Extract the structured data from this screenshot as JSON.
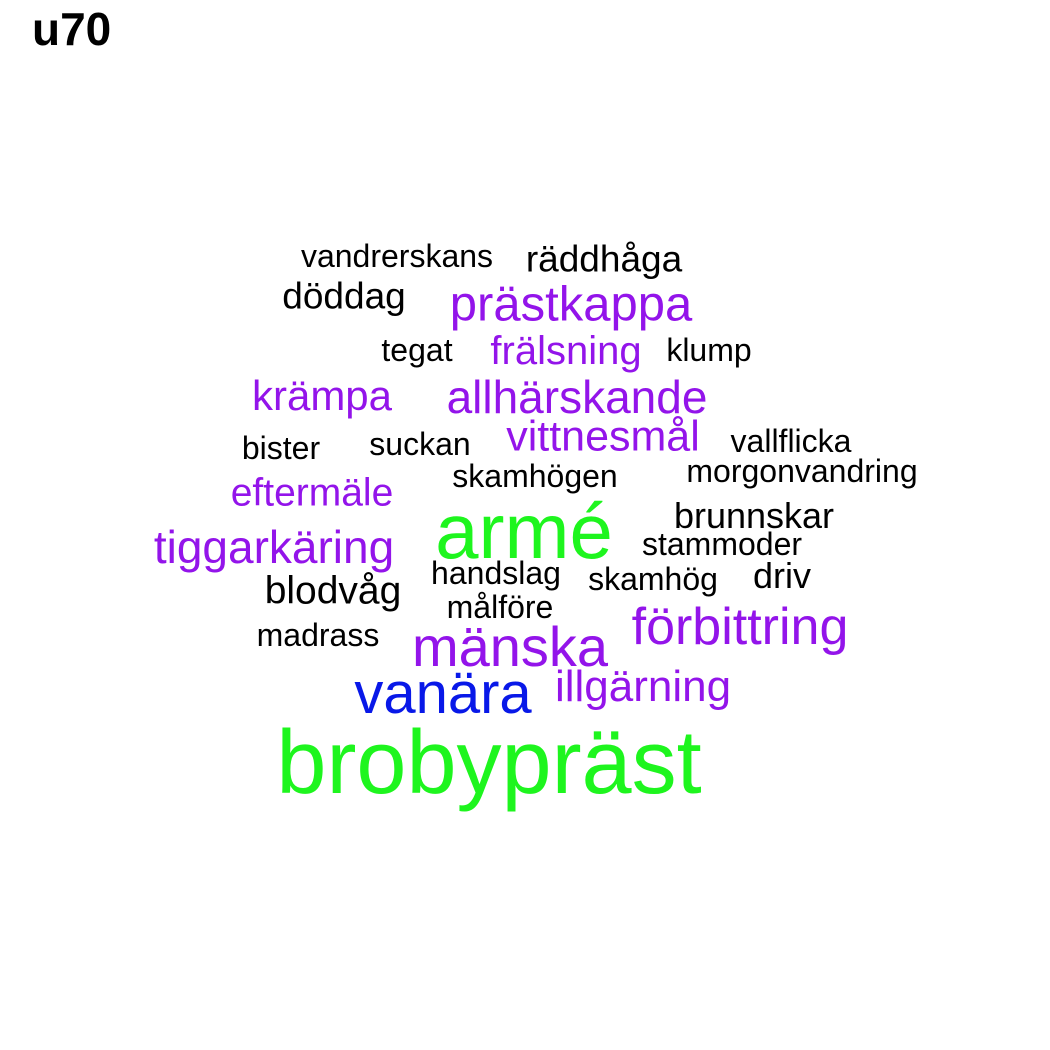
{
  "title": "u70",
  "colors": {
    "black": "#000000",
    "purple": "#9314ea",
    "green": "#1ef51e",
    "blue": "#0818e8"
  },
  "words": [
    {
      "text": "vandrerskans",
      "color": "black"
    },
    {
      "text": "räddhåga",
      "color": "black"
    },
    {
      "text": "döddag",
      "color": "black"
    },
    {
      "text": "prästkappa",
      "color": "purple"
    },
    {
      "text": "tegat",
      "color": "black"
    },
    {
      "text": "frälsning",
      "color": "purple"
    },
    {
      "text": "klump",
      "color": "black"
    },
    {
      "text": "krämpa",
      "color": "purple"
    },
    {
      "text": "allhärskande",
      "color": "purple"
    },
    {
      "text": "bister",
      "color": "black"
    },
    {
      "text": "suckan",
      "color": "black"
    },
    {
      "text": "vittnesmål",
      "color": "purple"
    },
    {
      "text": "vallflicka",
      "color": "black"
    },
    {
      "text": "skamhögen",
      "color": "black"
    },
    {
      "text": "morgonvandring",
      "color": "black"
    },
    {
      "text": "eftermäle",
      "color": "purple"
    },
    {
      "text": "armé",
      "color": "green"
    },
    {
      "text": "brunnskar",
      "color": "black"
    },
    {
      "text": "tiggarkäring",
      "color": "purple"
    },
    {
      "text": "stammoder",
      "color": "black"
    },
    {
      "text": "handslag",
      "color": "black"
    },
    {
      "text": "skamhög",
      "color": "black"
    },
    {
      "text": "driv",
      "color": "black"
    },
    {
      "text": "blodvåg",
      "color": "black"
    },
    {
      "text": "målföre",
      "color": "black"
    },
    {
      "text": "förbittring",
      "color": "purple"
    },
    {
      "text": "madrass",
      "color": "black"
    },
    {
      "text": "mänska",
      "color": "purple"
    },
    {
      "text": "vanära",
      "color": "blue"
    },
    {
      "text": "illgärning",
      "color": "purple"
    },
    {
      "text": "brobypräst",
      "color": "green"
    }
  ]
}
